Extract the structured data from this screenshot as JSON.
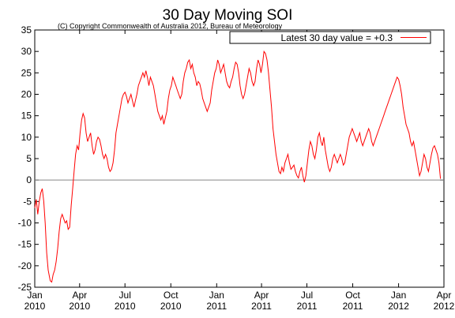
{
  "chart_data": {
    "type": "line",
    "title": "30 Day Moving SOI",
    "subtitle": "(C) Copyright Commonwealth of Australia 2012, Bureau of Meteorology",
    "xlabel": "",
    "ylabel": "",
    "legend": "Latest 30 day value = +0.3",
    "legend_position": "top-right",
    "line_color": "#ff0000",
    "ylim": [
      -25,
      35
    ],
    "yticks": [
      "35",
      "30",
      "25",
      "20",
      "15",
      "10",
      "5",
      "0",
      "-5",
      "-10",
      "-15",
      "-20",
      "-25"
    ],
    "xlim": [
      "2010-01-01",
      "2012-04-01"
    ],
    "xticks": [
      {
        "month": "Jan",
        "year": "2010",
        "date": "2010-01-01"
      },
      {
        "month": "Apr",
        "year": "2010",
        "date": "2010-04-01"
      },
      {
        "month": "Jul",
        "year": "2010",
        "date": "2010-07-01"
      },
      {
        "month": "Oct",
        "year": "2010",
        "date": "2010-10-01"
      },
      {
        "month": "Jan",
        "year": "2011",
        "date": "2011-01-01"
      },
      {
        "month": "Apr",
        "year": "2011",
        "date": "2011-04-01"
      },
      {
        "month": "Jul",
        "year": "2011",
        "date": "2011-07-01"
      },
      {
        "month": "Oct",
        "year": "2011",
        "date": "2011-10-01"
      },
      {
        "month": "Jan",
        "year": "2012",
        "date": "2012-01-01"
      },
      {
        "month": "Apr",
        "year": "2012",
        "date": "2012-04-01"
      }
    ],
    "zero_line": true,
    "series": [
      {
        "points": [
          [
            "2010-01-01",
            -6.5
          ],
          [
            "2010-01-04",
            -4.5
          ],
          [
            "2010-01-07",
            -8
          ],
          [
            "2010-01-10",
            -5
          ],
          [
            "2010-01-13",
            -3
          ],
          [
            "2010-01-16",
            -2
          ],
          [
            "2010-01-19",
            -5
          ],
          [
            "2010-01-22",
            -10
          ],
          [
            "2010-01-25",
            -17
          ],
          [
            "2010-01-28",
            -21
          ],
          [
            "2010-02-01",
            -23.5
          ],
          [
            "2010-02-04",
            -23.8
          ],
          [
            "2010-02-07",
            -22
          ],
          [
            "2010-02-10",
            -21
          ],
          [
            "2010-02-13",
            -19
          ],
          [
            "2010-02-16",
            -16
          ],
          [
            "2010-02-19",
            -12
          ],
          [
            "2010-02-22",
            -9
          ],
          [
            "2010-02-25",
            -8
          ],
          [
            "2010-02-28",
            -9
          ],
          [
            "2010-03-03",
            -10
          ],
          [
            "2010-03-06",
            -9.5
          ],
          [
            "2010-03-09",
            -11.5
          ],
          [
            "2010-03-12",
            -11
          ],
          [
            "2010-03-15",
            -6
          ],
          [
            "2010-03-18",
            -2
          ],
          [
            "2010-03-21",
            2
          ],
          [
            "2010-03-24",
            6
          ],
          [
            "2010-03-27",
            8
          ],
          [
            "2010-03-30",
            7
          ],
          [
            "2010-04-02",
            11
          ],
          [
            "2010-04-05",
            14
          ],
          [
            "2010-04-08",
            15.5
          ],
          [
            "2010-04-11",
            14.5
          ],
          [
            "2010-04-14",
            11
          ],
          [
            "2010-04-17",
            9
          ],
          [
            "2010-04-20",
            10
          ],
          [
            "2010-04-23",
            11
          ],
          [
            "2010-04-26",
            8
          ],
          [
            "2010-04-29",
            6
          ],
          [
            "2010-05-02",
            7
          ],
          [
            "2010-05-05",
            9
          ],
          [
            "2010-05-08",
            10
          ],
          [
            "2010-05-11",
            9.5
          ],
          [
            "2010-05-14",
            8
          ],
          [
            "2010-05-17",
            6
          ],
          [
            "2010-05-20",
            5
          ],
          [
            "2010-05-23",
            6
          ],
          [
            "2010-05-26",
            5
          ],
          [
            "2010-05-29",
            3
          ],
          [
            "2010-06-01",
            2
          ],
          [
            "2010-06-04",
            2.5
          ],
          [
            "2010-06-07",
            4
          ],
          [
            "2010-06-10",
            7
          ],
          [
            "2010-06-13",
            11
          ],
          [
            "2010-06-16",
            13
          ],
          [
            "2010-06-19",
            15
          ],
          [
            "2010-06-22",
            17
          ],
          [
            "2010-06-25",
            19
          ],
          [
            "2010-06-28",
            20
          ],
          [
            "2010-07-01",
            20.5
          ],
          [
            "2010-07-04",
            19.5
          ],
          [
            "2010-07-07",
            18
          ],
          [
            "2010-07-10",
            19
          ],
          [
            "2010-07-13",
            20
          ],
          [
            "2010-07-16",
            18.5
          ],
          [
            "2010-07-19",
            17
          ],
          [
            "2010-07-22",
            18.5
          ],
          [
            "2010-07-25",
            20
          ],
          [
            "2010-07-28",
            22
          ],
          [
            "2010-07-31",
            23
          ],
          [
            "2010-08-03",
            24
          ],
          [
            "2010-08-06",
            25
          ],
          [
            "2010-08-09",
            24
          ],
          [
            "2010-08-12",
            25.5
          ],
          [
            "2010-08-15",
            24
          ],
          [
            "2010-08-18",
            22
          ],
          [
            "2010-08-21",
            24
          ],
          [
            "2010-08-24",
            23
          ],
          [
            "2010-08-27",
            22
          ],
          [
            "2010-08-30",
            20
          ],
          [
            "2010-09-02",
            18
          ],
          [
            "2010-09-05",
            16
          ],
          [
            "2010-09-08",
            15
          ],
          [
            "2010-09-11",
            14
          ],
          [
            "2010-09-14",
            15
          ],
          [
            "2010-09-17",
            13
          ],
          [
            "2010-09-20",
            14.5
          ],
          [
            "2010-09-23",
            16
          ],
          [
            "2010-09-26",
            19
          ],
          [
            "2010-09-29",
            21
          ],
          [
            "2010-10-02",
            22
          ],
          [
            "2010-10-05",
            24
          ],
          [
            "2010-10-08",
            23
          ],
          [
            "2010-10-11",
            22
          ],
          [
            "2010-10-14",
            21
          ],
          [
            "2010-10-17",
            20
          ],
          [
            "2010-10-20",
            19
          ],
          [
            "2010-10-23",
            20
          ],
          [
            "2010-10-26",
            23
          ],
          [
            "2010-10-29",
            25
          ],
          [
            "2010-11-01",
            26
          ],
          [
            "2010-11-04",
            27.5
          ],
          [
            "2010-11-07",
            28
          ],
          [
            "2010-11-10",
            26
          ],
          [
            "2010-11-13",
            27
          ],
          [
            "2010-11-16",
            25
          ],
          [
            "2010-11-19",
            24
          ],
          [
            "2010-11-22",
            22
          ],
          [
            "2010-11-25",
            23
          ],
          [
            "2010-11-28",
            22.5
          ],
          [
            "2010-12-01",
            21
          ],
          [
            "2010-12-04",
            19
          ],
          [
            "2010-12-07",
            18
          ],
          [
            "2010-12-10",
            17
          ],
          [
            "2010-12-13",
            16
          ],
          [
            "2010-12-16",
            17
          ],
          [
            "2010-12-19",
            18
          ],
          [
            "2010-12-22",
            21
          ],
          [
            "2010-12-25",
            23
          ],
          [
            "2010-12-28",
            25
          ],
          [
            "2010-12-31",
            26
          ],
          [
            "2011-01-03",
            28
          ],
          [
            "2011-01-06",
            27
          ],
          [
            "2011-01-09",
            25
          ],
          [
            "2011-01-12",
            26
          ],
          [
            "2011-01-15",
            27
          ],
          [
            "2011-01-18",
            25
          ],
          [
            "2011-01-21",
            23
          ],
          [
            "2011-01-24",
            22
          ],
          [
            "2011-01-27",
            21.5
          ],
          [
            "2011-01-30",
            23
          ],
          [
            "2011-02-02",
            24
          ],
          [
            "2011-02-05",
            26
          ],
          [
            "2011-02-08",
            27.5
          ],
          [
            "2011-02-11",
            27
          ],
          [
            "2011-02-14",
            25
          ],
          [
            "2011-02-17",
            22
          ],
          [
            "2011-02-20",
            20
          ],
          [
            "2011-02-23",
            19
          ],
          [
            "2011-02-26",
            20
          ],
          [
            "2011-03-01",
            22
          ],
          [
            "2011-03-04",
            24
          ],
          [
            "2011-03-07",
            26
          ],
          [
            "2011-03-10",
            25
          ],
          [
            "2011-03-13",
            23
          ],
          [
            "2011-03-16",
            22
          ],
          [
            "2011-03-19",
            23
          ],
          [
            "2011-03-22",
            26
          ],
          [
            "2011-03-25",
            28
          ],
          [
            "2011-03-28",
            27
          ],
          [
            "2011-03-31",
            25
          ],
          [
            "2011-04-03",
            27
          ],
          [
            "2011-04-06",
            30
          ],
          [
            "2011-04-09",
            29.5
          ],
          [
            "2011-04-12",
            28
          ],
          [
            "2011-04-15",
            25
          ],
          [
            "2011-04-18",
            21
          ],
          [
            "2011-04-21",
            17
          ],
          [
            "2011-04-24",
            12
          ],
          [
            "2011-04-27",
            9
          ],
          [
            "2011-04-30",
            6
          ],
          [
            "2011-05-03",
            4
          ],
          [
            "2011-05-06",
            2
          ],
          [
            "2011-05-09",
            1.5
          ],
          [
            "2011-05-12",
            3
          ],
          [
            "2011-05-15",
            2
          ],
          [
            "2011-05-18",
            4
          ],
          [
            "2011-05-21",
            5
          ],
          [
            "2011-05-24",
            6
          ],
          [
            "2011-05-27",
            4
          ],
          [
            "2011-05-30",
            2.5
          ],
          [
            "2011-06-02",
            3
          ],
          [
            "2011-06-05",
            3.5
          ],
          [
            "2011-06-08",
            2
          ],
          [
            "2011-06-11",
            1
          ],
          [
            "2011-06-14",
            0.5
          ],
          [
            "2011-06-17",
            2
          ],
          [
            "2011-06-20",
            3
          ],
          [
            "2011-06-23",
            1
          ],
          [
            "2011-06-26",
            -0.5
          ],
          [
            "2011-06-29",
            1
          ],
          [
            "2011-07-02",
            4
          ],
          [
            "2011-07-05",
            7
          ],
          [
            "2011-07-08",
            9
          ],
          [
            "2011-07-11",
            8
          ],
          [
            "2011-07-14",
            6
          ],
          [
            "2011-07-17",
            5
          ],
          [
            "2011-07-20",
            7
          ],
          [
            "2011-07-23",
            10
          ],
          [
            "2011-07-26",
            11
          ],
          [
            "2011-07-29",
            9
          ],
          [
            "2011-08-01",
            8
          ],
          [
            "2011-08-04",
            10
          ],
          [
            "2011-08-07",
            7
          ],
          [
            "2011-08-10",
            5
          ],
          [
            "2011-08-13",
            3
          ],
          [
            "2011-08-16",
            2
          ],
          [
            "2011-08-19",
            3
          ],
          [
            "2011-08-22",
            5
          ],
          [
            "2011-08-25",
            6
          ],
          [
            "2011-08-28",
            5
          ],
          [
            "2011-08-31",
            4
          ],
          [
            "2011-09-03",
            5
          ],
          [
            "2011-09-06",
            6
          ],
          [
            "2011-09-09",
            5
          ],
          [
            "2011-09-12",
            3.5
          ],
          [
            "2011-09-15",
            4
          ],
          [
            "2011-09-18",
            6
          ],
          [
            "2011-09-21",
            8
          ],
          [
            "2011-09-24",
            10
          ],
          [
            "2011-09-27",
            11
          ],
          [
            "2011-09-30",
            12
          ],
          [
            "2011-10-03",
            11
          ],
          [
            "2011-10-06",
            10
          ],
          [
            "2011-10-09",
            9
          ],
          [
            "2011-10-12",
            10
          ],
          [
            "2011-10-15",
            11
          ],
          [
            "2011-10-18",
            9
          ],
          [
            "2011-10-21",
            8
          ],
          [
            "2011-10-24",
            9
          ],
          [
            "2011-10-27",
            10
          ],
          [
            "2011-10-30",
            11
          ],
          [
            "2011-11-02",
            12
          ],
          [
            "2011-11-05",
            11
          ],
          [
            "2011-11-08",
            9
          ],
          [
            "2011-11-11",
            8
          ],
          [
            "2011-11-14",
            9
          ],
          [
            "2011-11-17",
            10
          ],
          [
            "2011-11-20",
            11
          ],
          [
            "2011-11-23",
            12
          ],
          [
            "2011-11-26",
            13
          ],
          [
            "2011-11-29",
            14
          ],
          [
            "2011-12-02",
            15
          ],
          [
            "2011-12-05",
            16
          ],
          [
            "2011-12-08",
            17
          ],
          [
            "2011-12-11",
            18
          ],
          [
            "2011-12-14",
            19
          ],
          [
            "2011-12-17",
            20
          ],
          [
            "2011-12-20",
            21
          ],
          [
            "2011-12-23",
            22
          ],
          [
            "2011-12-26",
            23
          ],
          [
            "2011-12-29",
            24
          ],
          [
            "2012-01-01",
            23.5
          ],
          [
            "2012-01-04",
            22
          ],
          [
            "2012-01-07",
            20
          ],
          [
            "2012-01-10",
            17
          ],
          [
            "2012-01-13",
            15
          ],
          [
            "2012-01-16",
            13
          ],
          [
            "2012-01-19",
            12
          ],
          [
            "2012-01-22",
            11
          ],
          [
            "2012-01-25",
            9
          ],
          [
            "2012-01-28",
            8
          ],
          [
            "2012-01-31",
            9
          ],
          [
            "2012-02-03",
            7
          ],
          [
            "2012-02-06",
            5
          ],
          [
            "2012-02-09",
            3
          ],
          [
            "2012-02-12",
            1
          ],
          [
            "2012-02-15",
            2
          ],
          [
            "2012-02-18",
            4
          ],
          [
            "2012-02-21",
            6
          ],
          [
            "2012-02-24",
            5
          ],
          [
            "2012-02-27",
            3
          ],
          [
            "2012-03-01",
            2
          ],
          [
            "2012-03-04",
            4
          ],
          [
            "2012-03-07",
            6
          ],
          [
            "2012-03-10",
            7.5
          ],
          [
            "2012-03-13",
            8
          ],
          [
            "2012-03-16",
            7
          ],
          [
            "2012-03-19",
            6
          ],
          [
            "2012-03-22",
            4
          ],
          [
            "2012-03-25",
            0.3
          ]
        ]
      }
    ]
  }
}
